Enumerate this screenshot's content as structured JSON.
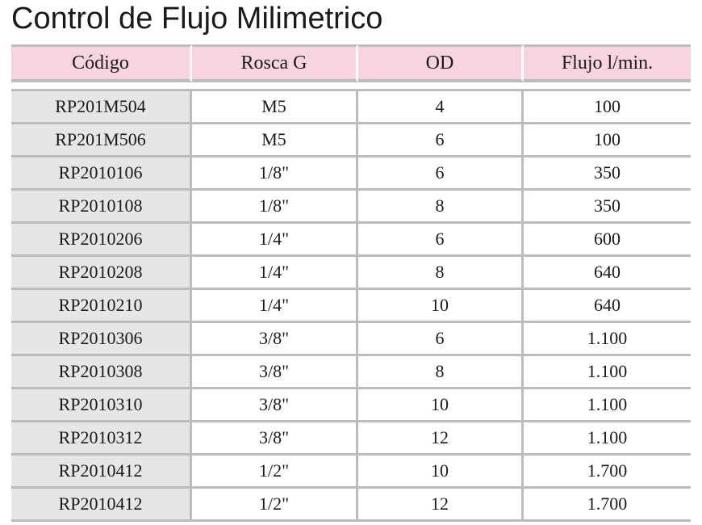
{
  "title": "Control de Flujo Milimetrico",
  "table": {
    "headers": [
      "Código",
      "Rosca G",
      "OD",
      "Flujo l/min."
    ],
    "rows": [
      [
        "RP201M504",
        "M5",
        "4",
        "100"
      ],
      [
        "RP201M506",
        "M5",
        "6",
        "100"
      ],
      [
        "RP2010106",
        "1/8\"",
        "6",
        "350"
      ],
      [
        "RP2010108",
        "1/8\"",
        "8",
        "350"
      ],
      [
        "RP2010206",
        "1/4\"",
        "6",
        "600"
      ],
      [
        "RP2010208",
        "1/4\"",
        "8",
        "640"
      ],
      [
        "RP2010210",
        "1/4\"",
        "10",
        "640"
      ],
      [
        "RP2010306",
        "3/8\"",
        "6",
        "1.100"
      ],
      [
        "RP2010308",
        "3/8\"",
        "8",
        "1.100"
      ],
      [
        "RP2010310",
        "3/8\"",
        "10",
        "1.100"
      ],
      [
        "RP2010312",
        "3/8\"",
        "12",
        "1.100"
      ],
      [
        "RP2010412",
        "1/2\"",
        "10",
        "1.700"
      ],
      [
        "RP2010412",
        "1/2\"",
        "12",
        "1.700"
      ]
    ]
  },
  "colors": {
    "header_background": "#f8d4e2",
    "code_column_background": "#e6e6e8",
    "rule": "#bcbcbc"
  }
}
